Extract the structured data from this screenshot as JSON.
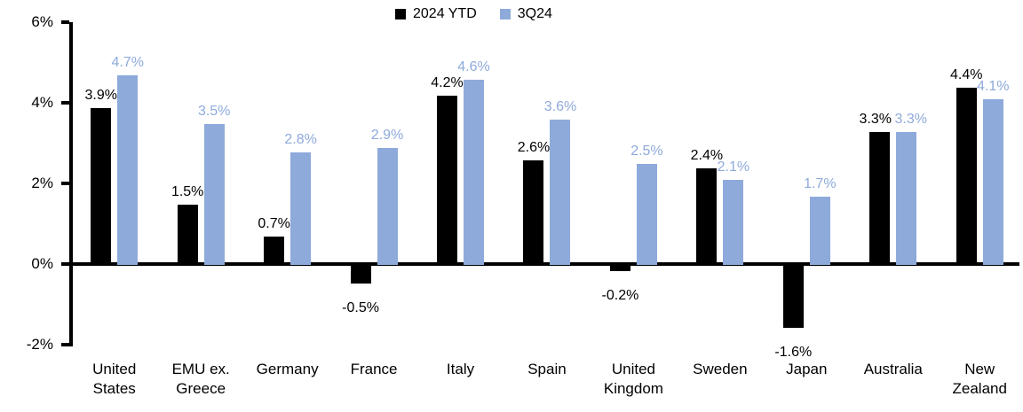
{
  "chart_data": {
    "type": "bar",
    "title": "",
    "xlabel": "",
    "ylabel": "",
    "categories": [
      "United States",
      "EMU ex. Greece",
      "Germany",
      "France",
      "Italy",
      "Spain",
      "United Kingdom",
      "Sweden",
      "Japan",
      "Australia",
      "New Zealand"
    ],
    "series": [
      {
        "name": "2024 YTD",
        "color": "#000000",
        "values": [
          3.9,
          1.5,
          0.7,
          -0.5,
          4.2,
          2.6,
          -0.2,
          2.4,
          -1.6,
          3.3,
          4.4
        ],
        "labels": [
          "3.9%",
          "1.5%",
          "0.7%",
          "-0.5%",
          "4.2%",
          "2.6%",
          "-0.2%",
          "2.4%",
          "-1.6%",
          "3.3%",
          "4.4%"
        ]
      },
      {
        "name": "3Q24",
        "color": "#8EAADB",
        "values": [
          4.7,
          3.5,
          2.8,
          2.9,
          4.6,
          3.6,
          2.5,
          2.1,
          1.7,
          3.3,
          4.1
        ],
        "labels": [
          "4.7%",
          "3.5%",
          "2.8%",
          "2.9%",
          "4.6%",
          "3.6%",
          "2.5%",
          "2.1%",
          "1.7%",
          "3.3%",
          "4.1%"
        ]
      }
    ],
    "ylim": [
      -2,
      6
    ],
    "yticks": [
      {
        "value": 6,
        "label": "6%"
      },
      {
        "value": 4,
        "label": "4%"
      },
      {
        "value": 2,
        "label": "2%"
      },
      {
        "value": 0,
        "label": "0%"
      },
      {
        "value": -2,
        "label": "-2%"
      }
    ],
    "grid": false,
    "value_labels": true,
    "legend_position": "top-center",
    "label_offsets": [
      {
        "series": 0,
        "index": 9,
        "dx": -5
      },
      {
        "series": 1,
        "index": 9,
        "dx": 5
      }
    ]
  }
}
